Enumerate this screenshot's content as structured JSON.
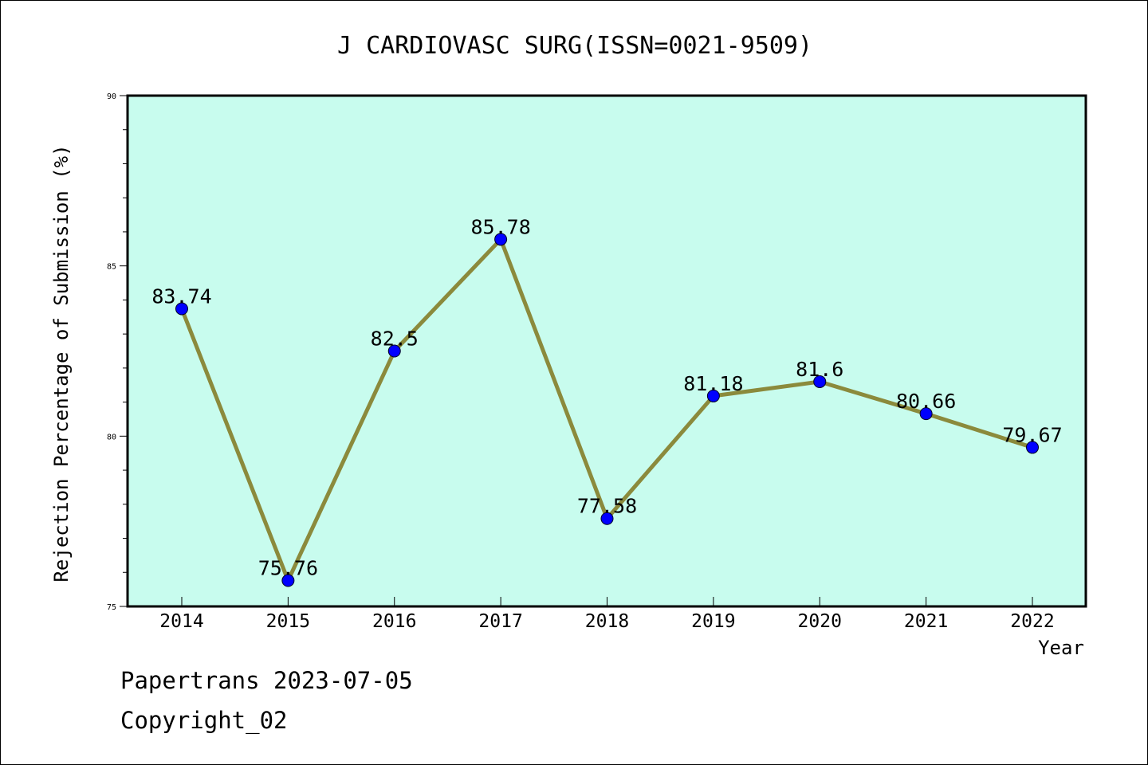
{
  "chart_data": {
    "type": "line",
    "title": "J CARDIOVASC SURG(ISSN=0021-9509)",
    "xlabel": "Year",
    "ylabel": "Rejection Percentage of Submission (%)",
    "categories": [
      "2014",
      "2015",
      "2016",
      "2017",
      "2018",
      "2019",
      "2020",
      "2021",
      "2022"
    ],
    "values": [
      83.74,
      75.76,
      82.5,
      85.78,
      77.58,
      81.18,
      81.6,
      80.66,
      79.67
    ],
    "value_labels": [
      "83.74",
      "75.76",
      "82.5",
      "85.78",
      "77.58",
      "81.18",
      "81.6",
      "80.66",
      "79.67"
    ],
    "ylim": [
      75,
      90
    ],
    "yticks": [
      75,
      80,
      85,
      90
    ],
    "grid": false,
    "legend": "none",
    "colors": {
      "plot_background": "#c8fcee",
      "line": "#8b8a3c",
      "marker": "#0000ff"
    }
  },
  "footer": {
    "line1": "Papertrans 2023-07-05",
    "line2": "Copyright_02"
  }
}
